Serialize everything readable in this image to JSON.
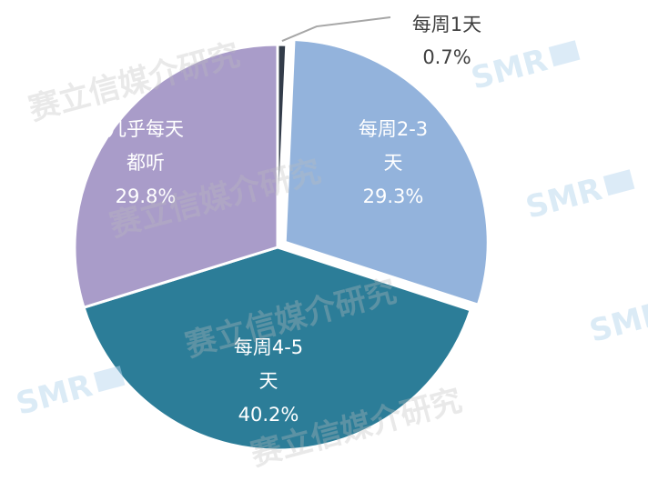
{
  "chart_data": {
    "type": "pie",
    "start_angle_deg": 0,
    "direction": "clockwise",
    "slices": [
      {
        "label": "每周1天",
        "value": 0.7,
        "value_label": "0.7%",
        "color": "#333c4a",
        "label_position": "outside"
      },
      {
        "label": "每周2-3天",
        "value": 29.3,
        "value_label": "29.3%",
        "color": "#93b3dc",
        "label_position": "inside"
      },
      {
        "label": "每周4-5天",
        "value": 40.2,
        "value_label": "40.2%",
        "color": "#2c7d98",
        "label_position": "inside"
      },
      {
        "label": "几乎每天都听",
        "value": 29.8,
        "value_label": "29.8%",
        "color": "#a99cc9",
        "label_position": "inside"
      }
    ],
    "label_lines": [
      [
        "每周1天",
        "0.7%"
      ],
      [
        "每周2-3",
        "天",
        "29.3%"
      ],
      [
        "每周4-5",
        "天",
        "40.2%"
      ],
      [
        "几乎每天",
        "都听",
        "29.8%"
      ]
    ],
    "separator_color": "#ffffff",
    "leader_line_color": "#a6a6a6"
  },
  "watermark": {
    "text": "赛立信媒介研究",
    "logo_text": "SMR",
    "logo_color": "#b9d8ef"
  }
}
